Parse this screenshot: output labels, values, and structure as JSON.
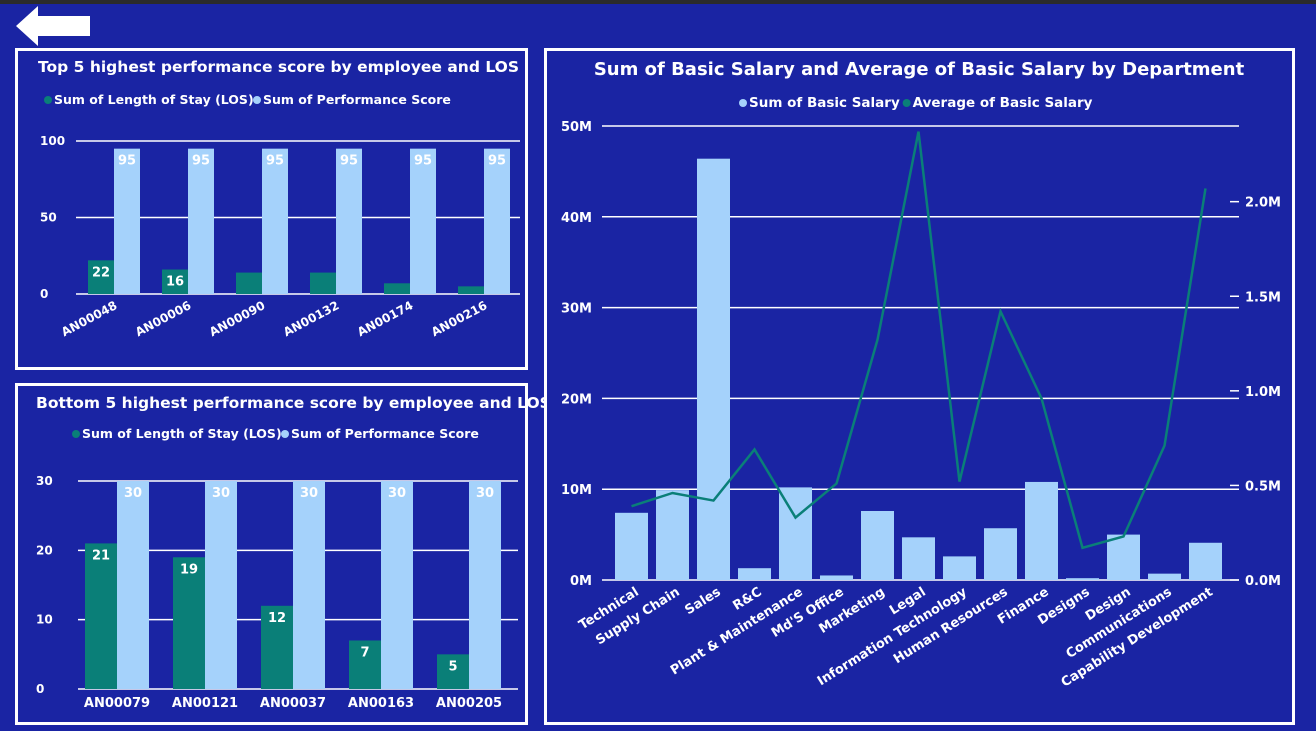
{
  "colors": {
    "background": "#1a24a3",
    "los": "#0a7f78",
    "performance": "#a5d2fb",
    "basic_salary_sum": "#a5d2fb",
    "basic_salary_avg": "#0a7f78",
    "grid": "#ffffff"
  },
  "back_button": {
    "icon": "arrow-left-icon"
  },
  "chart_data": [
    {
      "type": "bar",
      "title": "Top 5 highest performance score by employee and LOS",
      "legend": [
        "Sum of Length of Stay (LOS)",
        "Sum of Performance Score"
      ],
      "legend_position": "top",
      "categories": [
        "AN00048",
        "AN00006",
        "AN00090",
        "AN00132",
        "AN00174",
        "AN00216"
      ],
      "series": [
        {
          "name": "Sum of Length of Stay (LOS)",
          "values": [
            22,
            16,
            14,
            14,
            7,
            5
          ],
          "labels": [
            "22",
            "16",
            "",
            "",
            "",
            ""
          ]
        },
        {
          "name": "Sum of Performance Score",
          "values": [
            95,
            95,
            95,
            95,
            95,
            95
          ],
          "labels": [
            "95",
            "95",
            "95",
            "95",
            "95",
            "95"
          ]
        }
      ],
      "yticks": [
        "0",
        "50",
        "100"
      ],
      "ylim": [
        0,
        100
      ],
      "grid": true
    },
    {
      "type": "bar",
      "title": "Bottom 5 highest performance score by employee and LOS",
      "legend": [
        "Sum of Length of Stay (LOS)",
        "Sum of Performance Score"
      ],
      "legend_position": "top",
      "categories": [
        "AN00079",
        "AN00121",
        "AN00037",
        "AN00163",
        "AN00205"
      ],
      "series": [
        {
          "name": "Sum of Length of Stay (LOS)",
          "values": [
            21,
            19,
            12,
            7,
            5
          ],
          "labels": [
            "21",
            "19",
            "12",
            "7",
            "5"
          ]
        },
        {
          "name": "Sum of Performance Score",
          "values": [
            30,
            30,
            30,
            30,
            30
          ],
          "labels": [
            "30",
            "30",
            "30",
            "30",
            "30"
          ]
        }
      ],
      "yticks": [
        "0",
        "10",
        "20",
        "30"
      ],
      "ylim": [
        0,
        30
      ],
      "grid": true
    },
    {
      "type": "bar",
      "title": "Sum of Basic Salary and Average of Basic Salary by Department",
      "legend": [
        "Sum of Basic Salary",
        "Average of Basic Salary"
      ],
      "legend_position": "top",
      "categories": [
        "Technical",
        "Supply Chain",
        "Sales",
        "R&C",
        "Plant & Maintenance",
        "Md'S Office",
        "Marketing",
        "Legal",
        "Information Technology",
        "Human Resources",
        "Finance",
        "Designs",
        "Design",
        "Communications",
        "Capability Development"
      ],
      "series": [
        {
          "name": "Sum of Basic Salary",
          "chart": "bar",
          "axis": "left",
          "values": [
            7400000,
            9900000,
            46400000,
            1300000,
            10200000,
            500000,
            7600000,
            4700000,
            2600000,
            5700000,
            10800000,
            200000,
            5000000,
            700000,
            4100000
          ]
        },
        {
          "name": "Average of Basic Salary",
          "chart": "line",
          "axis": "right",
          "values": [
            390000,
            460000,
            420000,
            690000,
            330000,
            510000,
            1270000,
            2370000,
            520000,
            1420000,
            960000,
            170000,
            230000,
            710000,
            2070000
          ]
        }
      ],
      "yticks_left": [
        "0M",
        "10M",
        "20M",
        "30M",
        "40M",
        "50M"
      ],
      "ylim_left": [
        0,
        50000000
      ],
      "yticks_right": [
        "0.0M",
        "0.5M",
        "1.0M",
        "1.5M",
        "2.0M"
      ],
      "ylim_right": [
        0,
        2400000
      ],
      "grid": true
    }
  ]
}
